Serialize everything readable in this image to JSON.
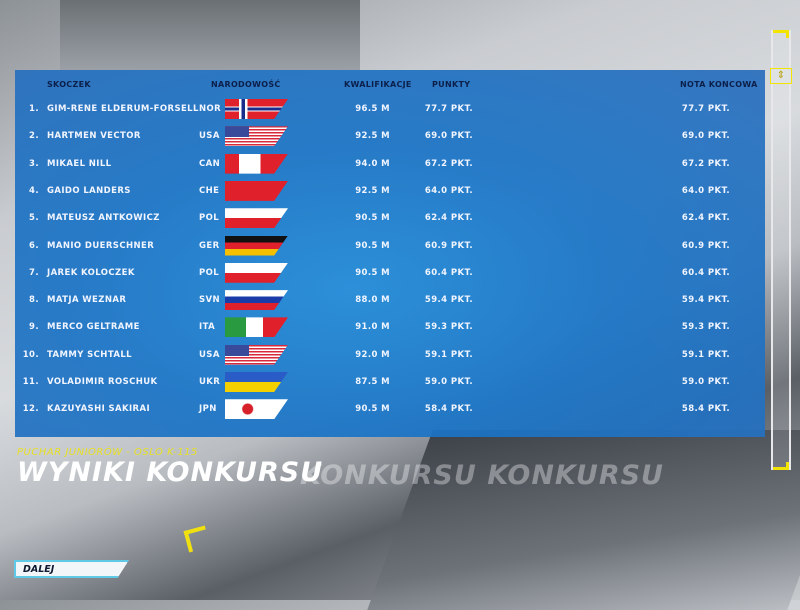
{
  "headers": {
    "skoczek": "SKOCZEK",
    "narodowosc": "NARODOWOŚĆ",
    "kwalifikacje": "KWALIFIKACJE",
    "punkty": "PUNKTY",
    "nota": "NOTA KONCOWA"
  },
  "rows": [
    {
      "rank": "1.",
      "name": "GIM-RENE ELDERUM-FORSELL",
      "nat": "NOR",
      "kw": "96.5 M",
      "pk": "77.7 PKT.",
      "nota": "77.7 PKT."
    },
    {
      "rank": "2.",
      "name": "HARTMEN VECTOR",
      "nat": "USA",
      "kw": "92.5 M",
      "pk": "69.0 PKT.",
      "nota": "69.0 PKT."
    },
    {
      "rank": "3.",
      "name": "MIKAEL NILL",
      "nat": "CAN",
      "kw": "94.0 M",
      "pk": "67.2 PKT.",
      "nota": "67.2 PKT."
    },
    {
      "rank": "4.",
      "name": "GAIDO LANDERS",
      "nat": "CHE",
      "kw": "92.5 M",
      "pk": "64.0 PKT.",
      "nota": "64.0 PKT."
    },
    {
      "rank": "5.",
      "name": "MATEUSZ ANTKOWICZ",
      "nat": "POL",
      "kw": "90.5 M",
      "pk": "62.4 PKT.",
      "nota": "62.4 PKT."
    },
    {
      "rank": "6.",
      "name": "MANIO DUERSCHNER",
      "nat": "GER",
      "kw": "90.5 M",
      "pk": "60.9 PKT.",
      "nota": "60.9 PKT."
    },
    {
      "rank": "7.",
      "name": "JAREK KOLOCZEK",
      "nat": "POL",
      "kw": "90.5 M",
      "pk": "60.4 PKT.",
      "nota": "60.4 PKT."
    },
    {
      "rank": "8.",
      "name": "MATJA WEZNAR",
      "nat": "SVN",
      "kw": "88.0 M",
      "pk": "59.4 PKT.",
      "nota": "59.4 PKT."
    },
    {
      "rank": "9.",
      "name": "MERCO GELTRAME",
      "nat": "ITA",
      "kw": "91.0 M",
      "pk": "59.3 PKT.",
      "nota": "59.3 PKT."
    },
    {
      "rank": "10.",
      "name": "TAMMY SCHTALL",
      "nat": "USA",
      "kw": "92.0 M",
      "pk": "59.1 PKT.",
      "nota": "59.1 PKT."
    },
    {
      "rank": "11.",
      "name": "VOLADIMIR ROSCHUK",
      "nat": "UKR",
      "kw": "87.5 M",
      "pk": "59.0 PKT.",
      "nota": "59.0 PKT."
    },
    {
      "rank": "12.",
      "name": "KAZUYASHI SAKIRAI",
      "nat": "JPN",
      "kw": "90.5 M",
      "pk": "58.4 PKT.",
      "nota": "58.4 PKT."
    }
  ],
  "subtitle": "PUCHAR JUNIORÓW - OSLO K-115",
  "title": "WYNIKI KONKURSU",
  "ghost_title": "KONKURSU KONKURSU",
  "next_button": "DALEJ",
  "colors": {
    "panel": "#1a74c6",
    "accent": "#f2e300",
    "header_text": "#0c1f4a"
  }
}
